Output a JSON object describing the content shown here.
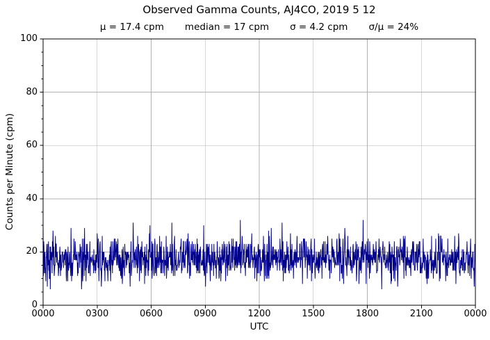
{
  "chart_data": {
    "type": "line",
    "title": "Observed Gamma Counts, AJ4CO, 2019 5 12",
    "subtitle": "μ = 17.4 cpm       median = 17 cpm       σ = 4.2 cpm       σ/μ = 24%",
    "stats": {
      "mu_cpm": 17.4,
      "median_cpm": 17,
      "sigma_cpm": 4.2,
      "sigma_over_mu": "24%"
    },
    "xlabel": "UTC",
    "ylabel": "Counts per Minute (cpm)",
    "x_tick_labels": [
      "0000",
      "0300",
      "0600",
      "0900",
      "1200",
      "1500",
      "1800",
      "2100",
      "0000"
    ],
    "y_tick_labels": [
      "0",
      "20",
      "40",
      "60",
      "80",
      "100"
    ],
    "y_major_ticks": [
      0,
      20,
      40,
      60,
      80,
      100
    ],
    "y_minor_step": 5,
    "ylim": [
      0,
      100
    ],
    "xlim_minutes": [
      0,
      1440
    ],
    "grid": true,
    "legend": "none",
    "series": [
      {
        "name": "observed-gamma-counts",
        "points_per_day": 1441,
        "distribution": "poisson",
        "mean_cpm": 17.4,
        "median_cpm": 17,
        "sigma_cpm": 4.2,
        "sigma_over_mu_pct": 24,
        "approx_min_cpm": 5,
        "approx_max_cpm": 32,
        "seed": 20190512,
        "color": "#00008b"
      }
    ],
    "colors": {
      "line": "#00008b",
      "grid": "#b0b0b0",
      "axis": "#000000",
      "background": "#ffffff",
      "text": "#000000"
    }
  }
}
